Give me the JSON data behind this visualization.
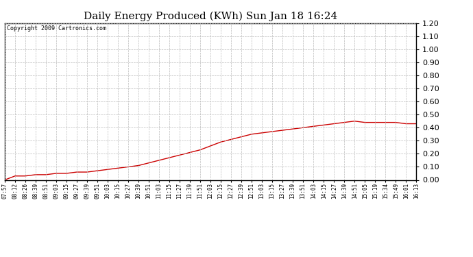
{
  "title": "Daily Energy Produced (KWh) Sun Jan 18 16:24",
  "copyright_text": "Copyright 2009 Cartronics.com",
  "line_color": "#cc0000",
  "bg_color": "#ffffff",
  "grid_color": "#bbbbbb",
  "ylim": [
    0.0,
    1.2
  ],
  "yticks": [
    0.0,
    0.1,
    0.2,
    0.3,
    0.4,
    0.5,
    0.6,
    0.7,
    0.8,
    0.9,
    1.0,
    1.1,
    1.2
  ],
  "x_labels": [
    "07:57",
    "08:12",
    "08:26",
    "08:39",
    "08:51",
    "09:03",
    "09:15",
    "09:27",
    "09:39",
    "09:51",
    "10:03",
    "10:15",
    "10:27",
    "10:39",
    "10:51",
    "11:03",
    "11:15",
    "11:27",
    "11:39",
    "11:51",
    "12:03",
    "12:15",
    "12:27",
    "12:39",
    "12:51",
    "13:03",
    "13:15",
    "13:27",
    "13:39",
    "13:51",
    "14:03",
    "14:15",
    "14:27",
    "14:39",
    "14:51",
    "15:05",
    "15:19",
    "15:34",
    "15:49",
    "16:01",
    "16:13"
  ],
  "y_values": [
    0.0,
    0.03,
    0.03,
    0.04,
    0.04,
    0.05,
    0.05,
    0.06,
    0.06,
    0.07,
    0.08,
    0.09,
    0.1,
    0.11,
    0.13,
    0.15,
    0.17,
    0.19,
    0.21,
    0.23,
    0.26,
    0.29,
    0.31,
    0.33,
    0.35,
    0.36,
    0.37,
    0.38,
    0.39,
    0.4,
    0.41,
    0.42,
    0.43,
    0.44,
    0.45,
    0.44,
    0.44,
    0.44,
    0.44,
    0.43,
    0.43
  ],
  "title_fontsize": 11,
  "copyright_fontsize": 6,
  "ytick_fontsize": 8,
  "xtick_fontsize": 5.5,
  "line_width": 1.0
}
